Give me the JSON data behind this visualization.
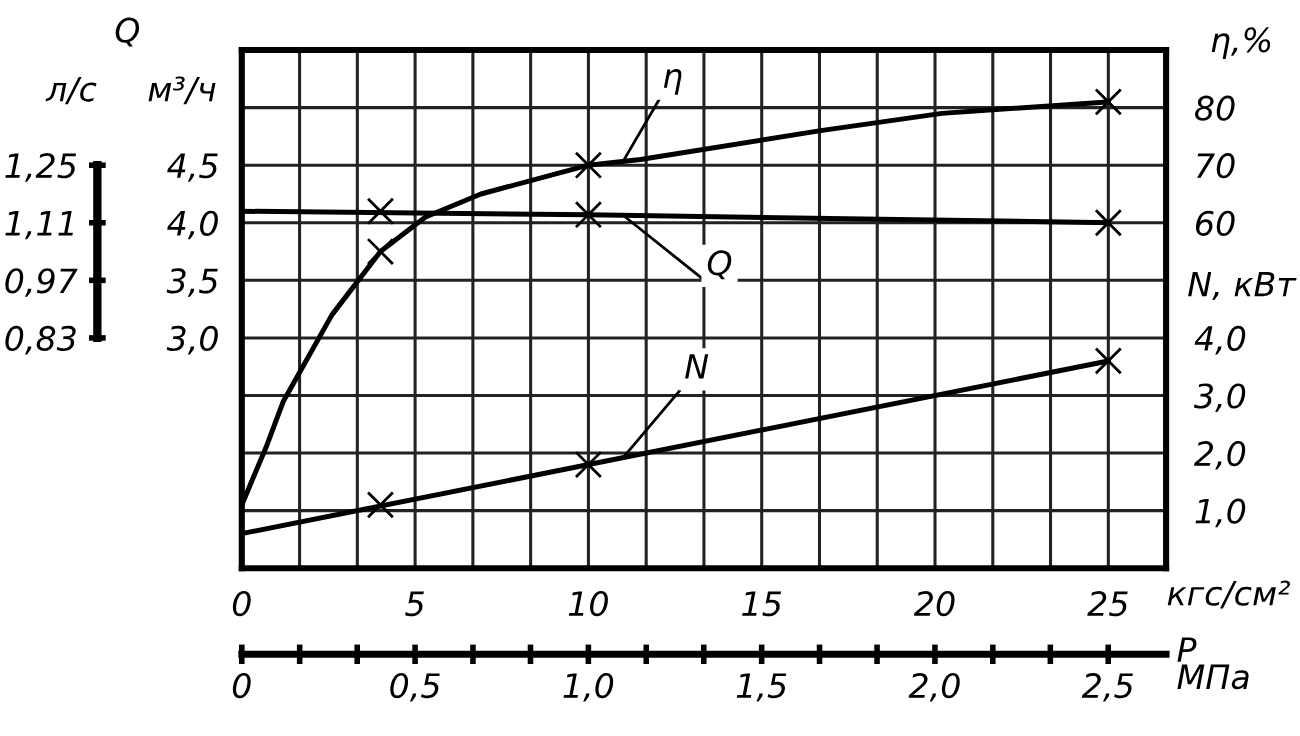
{
  "chart_data": {
    "type": "line",
    "xlabel": "кгс/см²",
    "ylabel": "м³/ч",
    "y2label": "η,%",
    "y3label": "N, кВт",
    "x2label": "P\nМПа",
    "annotations": [
      "Q",
      "л/с",
      "0,83",
      "0,97",
      "1,11",
      "1,25"
    ],
    "xlim": [
      0,
      26.667
    ],
    "xticks": [
      {
        "value": 0,
        "label": "0"
      },
      {
        "value": 1.667,
        "label": null
      },
      {
        "value": 3.333,
        "label": null
      },
      {
        "value": 5,
        "label": "5"
      },
      {
        "value": 6.667,
        "label": null
      },
      {
        "value": 8.333,
        "label": null
      },
      {
        "value": 10,
        "label": "10"
      },
      {
        "value": 11.667,
        "label": null
      },
      {
        "value": 13.333,
        "label": null
      },
      {
        "value": 15,
        "label": "15"
      },
      {
        "value": 16.667,
        "label": null
      },
      {
        "value": 18.333,
        "label": null
      },
      {
        "value": 20,
        "label": "20"
      },
      {
        "value": 21.667,
        "label": null
      },
      {
        "value": 23.333,
        "label": null
      },
      {
        "value": 25,
        "label": "25"
      }
    ],
    "ylim": [
      1.0,
      5.5
    ],
    "yticks": [
      {
        "value": 1.0,
        "label": null
      },
      {
        "value": 1.5,
        "label": null
      },
      {
        "value": 2.0,
        "label": null
      },
      {
        "value": 2.5,
        "label": null
      },
      {
        "value": 3.0,
        "label": "3,0"
      },
      {
        "value": 3.5,
        "label": "3,5"
      },
      {
        "value": 4.0,
        "label": "4,0"
      },
      {
        "value": 4.5,
        "label": "4,5"
      },
      {
        "value": 5.0,
        "label": null
      }
    ],
    "y2lim": [
      0,
      90
    ],
    "y2ticks": [
      60,
      70,
      80
    ],
    "y3lim": [
      0,
      9
    ],
    "y3ticks": [
      {
        "value": 1,
        "label": "1,0"
      },
      {
        "value": 2,
        "label": "2,0"
      },
      {
        "value": 3,
        "label": "3,0"
      },
      {
        "value": 4,
        "label": "4,0"
      }
    ],
    "x2lim": [
      0,
      2.667
    ],
    "x2ticks": [
      {
        "value": 0,
        "label": "0"
      },
      {
        "value": 0.167,
        "label": null
      },
      {
        "value": 0.333,
        "label": null
      },
      {
        "value": 0.5,
        "label": "0,5"
      },
      {
        "value": 0.667,
        "label": null
      },
      {
        "value": 0.833,
        "label": null
      },
      {
        "value": 1.0,
        "label": "1,0"
      },
      {
        "value": 1.167,
        "label": null
      },
      {
        "value": 1.333,
        "label": null
      },
      {
        "value": 1.5,
        "label": "1,5"
      },
      {
        "value": 1.667,
        "label": null
      },
      {
        "value": 1.833,
        "label": null
      },
      {
        "value": 2.0,
        "label": "2,0"
      },
      {
        "value": 2.167,
        "label": null
      },
      {
        "value": 2.333,
        "label": null
      },
      {
        "value": 2.5,
        "label": "2,5"
      }
    ],
    "grid": true,
    "series": [
      {
        "name": "η",
        "axis": "y2",
        "color": "#000000",
        "marker": "none",
        "x": [
          0,
          0.7,
          1.2,
          2.6,
          4,
          5.3,
          6.9,
          10,
          11.5,
          16.7,
          20.2,
          25
        ],
        "values": [
          11,
          21,
          29,
          44,
          55,
          61,
          65,
          70,
          71,
          76,
          79,
          81
        ]
      },
      {
        "name": "Q",
        "axis": "y",
        "color": "#000000",
        "marker": "none",
        "x": [
          0,
          10,
          25
        ],
        "values": [
          4.1,
          4.07,
          4.0
        ]
      },
      {
        "name": "N",
        "axis": "y3",
        "color": "#000000",
        "marker": "none",
        "x": [
          0,
          25
        ],
        "values": [
          0.6,
          3.6
        ]
      },
      {
        "type": "scatter",
        "axis": "y2",
        "color": "#000000",
        "marker": "cross",
        "x": [
          4,
          10,
          25
        ],
        "values": [
          55,
          70,
          81
        ]
      },
      {
        "type": "scatter",
        "axis": "y",
        "color": "#000000",
        "marker": "cross",
        "x": [
          4,
          10,
          25
        ],
        "values": [
          4.1,
          4.07,
          4.0
        ]
      },
      {
        "type": "scatter",
        "axis": "y3",
        "color": "#000000",
        "marker": "cross",
        "x": [
          4,
          10,
          25
        ],
        "values": [
          1.1,
          1.8,
          3.6
        ]
      }
    ]
  }
}
